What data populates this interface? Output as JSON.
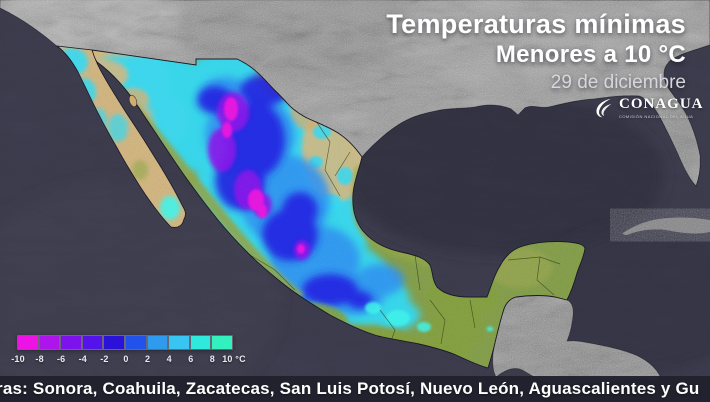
{
  "header": {
    "title": "Temperaturas mínimas",
    "subtitle": "Menores a 10 °C",
    "date": "29 de diciembre"
  },
  "logo": {
    "name": "CONAGUA",
    "tagline": "COMISIÓN NACIONAL DEL AGUA"
  },
  "legend": {
    "labels": [
      "-10",
      "-8",
      "-6",
      "-4",
      "-2",
      "0",
      "2",
      "4",
      "6",
      "8",
      "10 °C"
    ],
    "colors": [
      "#ec13e4",
      "#ad15ec",
      "#7d12ec",
      "#5313ea",
      "#2a12d8",
      "#2153ec",
      "#2f9bee",
      "#38c5f1",
      "#30e9dd",
      "#33f0bf"
    ]
  },
  "footer": {
    "text": "ras: Sonora, Coahuila, Zacatecas, San Luis Potosí, Nuevo León, Aguascalientes y Gu"
  },
  "map": {
    "region": "México",
    "ocean_color": "#3a3a4b",
    "gulf_color": "#2d2d3d",
    "us_land_color": "#9b9b9b",
    "warm_land_color": "#7d9a3e",
    "dry_land_color": "#d3b377"
  }
}
